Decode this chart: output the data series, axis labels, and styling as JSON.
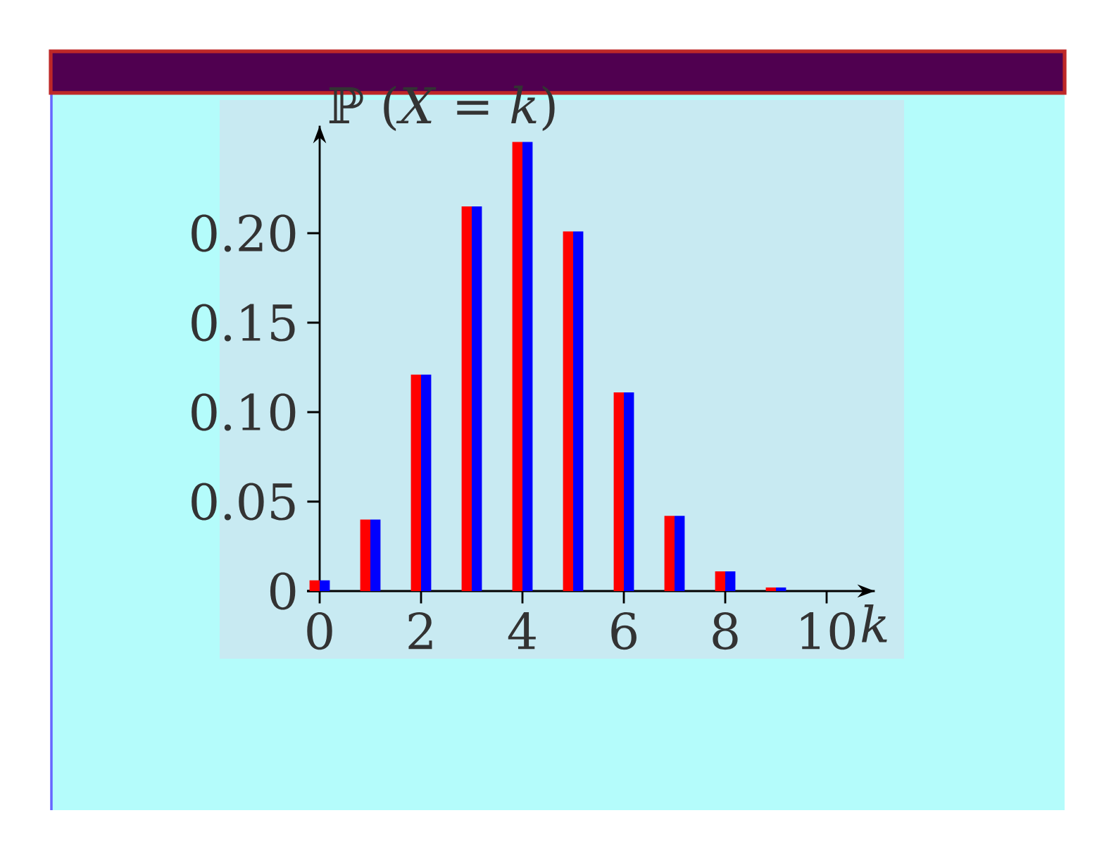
{
  "chart_data": {
    "type": "bar",
    "ylabel": "ℙ (*X* = *k*)",
    "xlabel": "k",
    "x": [
      0,
      1,
      2,
      3,
      4,
      5,
      6,
      7,
      8,
      9
    ],
    "series": [
      {
        "color": "#ff0000",
        "values": [
          0.006,
          0.04,
          0.121,
          0.215,
          0.251,
          0.201,
          0.111,
          0.042,
          0.011,
          0.002
        ]
      },
      {
        "color": "#0000ff",
        "values": [
          0.006,
          0.04,
          0.121,
          0.215,
          0.251,
          0.201,
          0.111,
          0.042,
          0.011,
          0.002
        ]
      }
    ],
    "xlim": [
      -0.25,
      10.95
    ],
    "ylim": [
      0,
      0.26
    ],
    "xticks": [
      0,
      2,
      4,
      6,
      8,
      10
    ],
    "yticks": [
      0,
      {
        "value": 0.05,
        "label": "0.05"
      },
      {
        "value": 0.1,
        "label": "0.10"
      },
      {
        "value": 0.15,
        "label": "0.15"
      },
      {
        "value": 0.2,
        "label": "0.20"
      }
    ],
    "grid": false
  }
}
